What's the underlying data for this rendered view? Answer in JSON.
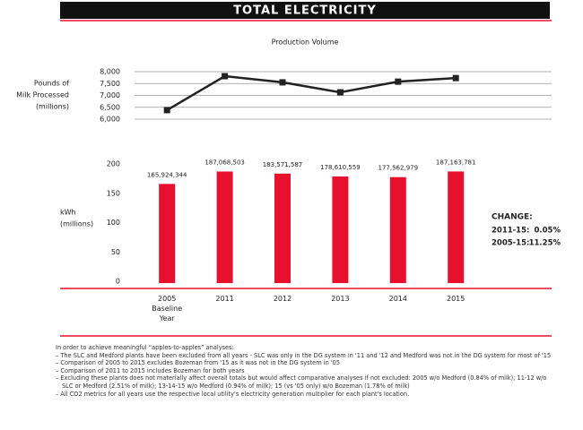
{
  "header": {
    "title": "TOTAL ELECTRICITY"
  },
  "chart_data": [
    {
      "type": "line",
      "title": "Production Volume",
      "y_label": [
        "Pounds of",
        "Milk Processed",
        "(millions)"
      ],
      "values": [
        6380,
        7810,
        7550,
        7130,
        7580,
        7730
      ],
      "color": "#222222",
      "ylim": [
        6000,
        8000
      ],
      "yticks": [
        {
          "value": 6000,
          "label": "6,000"
        },
        {
          "value": 6500,
          "label": "6,500"
        },
        {
          "value": 7000,
          "label": "7,000"
        },
        {
          "value": 7500,
          "label": "7,500"
        },
        {
          "value": 8000,
          "label": "8,000"
        }
      ],
      "grid": true
    },
    {
      "type": "bar",
      "y_label": [
        "kWh",
        "(millions)"
      ],
      "categories": [
        "2005 Baseline Year",
        "2011",
        "2012",
        "2013",
        "2014",
        "2015"
      ],
      "values": [
        165.924344,
        187.068503,
        183.571587,
        178.610559,
        177.562979,
        187.163781
      ],
      "value_labels": [
        "165,924,344",
        "187,068,503",
        "183,571,587",
        "178,610,559",
        "177,562,979",
        "187,163,781"
      ],
      "color": "#e8112d",
      "ylim": [
        0,
        200
      ],
      "yticks": [
        0,
        50,
        100,
        150,
        200
      ],
      "grid": false
    }
  ],
  "change": {
    "title": "CHANGE:",
    "rows": [
      {
        "label": "2011-15:",
        "value": "0.05%"
      },
      {
        "label": "2005-15:",
        "value": "11.25%"
      }
    ]
  },
  "notes": [
    "In order to achieve meaningful “apples-to-apples” analyses:",
    "– The SLC and Medford plants have been excluded from all years - SLC was only in the DG system in '11 and '12 and Medford was not in the DG system for most of '15",
    "– Comparison of 2005 to 2015 excludes Bozeman from '15 as it was not in the DG system in '05",
    "– Comparison of 2011 to 2015 includes Bozeman for both years",
    "– Excluding these plants does not materially affect overall totals but would affect comparative analyses if not excluded: 2005 w/o Medford (0.84% of milk); 11-12 w/o SLC or Medford (2.51% of milk); 13-14-15 w/o Medford (0.94% of milk); 15 (vs '05 only) w/o Bozeman (1.78% of milk)",
    "– All CO2 metrics for all years use the respective local utility's electricity generation multiplier for each plant's location."
  ]
}
